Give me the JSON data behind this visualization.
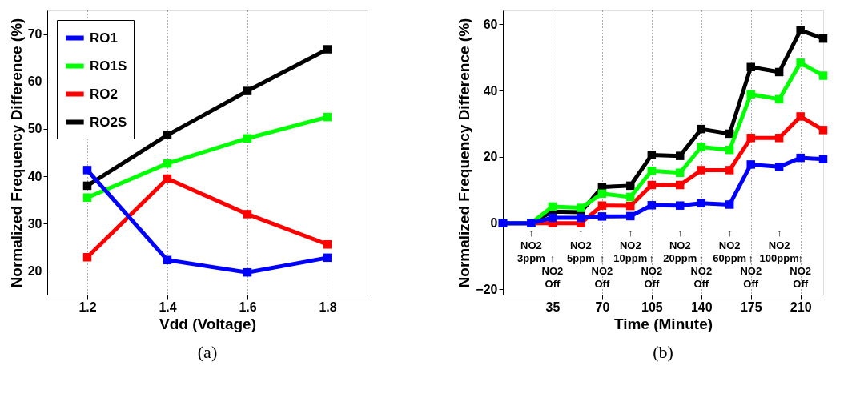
{
  "chart_data": [
    {
      "type": "line",
      "xlabel": "Vdd (Voltage)",
      "ylabel": "Normalized Frequency Difference (%)",
      "x": [
        1.2,
        1.4,
        1.6,
        1.8
      ],
      "xlim": [
        1.1,
        1.9
      ],
      "xticks": [
        1.2,
        1.4,
        1.6,
        1.8
      ],
      "ylim": [
        15,
        75
      ],
      "yticks": [
        20,
        30,
        40,
        50,
        60,
        70
      ],
      "grid": "x",
      "legend": "top left",
      "marker": "square",
      "line_style": "solid",
      "series": [
        {
          "name": "RO1",
          "color": "#0000ff",
          "values": [
            41.3,
            22.3,
            19.7,
            22.8
          ]
        },
        {
          "name": "RO1S",
          "color": "#00ff00",
          "values": [
            35.5,
            42.7,
            48.0,
            52.5
          ]
        },
        {
          "name": "RO2",
          "color": "#ff0000",
          "values": [
            22.9,
            39.5,
            32.0,
            25.6
          ]
        },
        {
          "name": "RO2S",
          "color": "#000000",
          "values": [
            38.0,
            48.7,
            58.0,
            66.8
          ]
        }
      ],
      "annotations": [
        "(a)"
      ]
    },
    {
      "type": "line",
      "xlabel": "Time (Minute)",
      "ylabel": "Normalized Frequency Difference (%)",
      "x": [
        0,
        20,
        35,
        55,
        70,
        90,
        105,
        125,
        140,
        160,
        175,
        195,
        210,
        226
      ],
      "xlim": [
        0,
        226
      ],
      "xticks": [
        35,
        70,
        105,
        140,
        175,
        210
      ],
      "ylim": [
        -21.6,
        64.2
      ],
      "yticks": [
        -20,
        0,
        20,
        40,
        60
      ],
      "grid": "x",
      "legend": "top left",
      "marker": "square",
      "line_style": "solid",
      "series": [
        {
          "name": "RO1",
          "color": "#0000ff",
          "values": [
            0,
            0,
            1.6,
            1.6,
            2.0,
            2.1,
            5.4,
            5.3,
            6.0,
            5.6,
            17.7,
            17.0,
            19.7,
            19.3
          ]
        },
        {
          "name": "RO1S",
          "color": "#00ff00",
          "values": [
            0,
            0,
            5.0,
            4.6,
            8.9,
            7.9,
            15.8,
            15.2,
            23.0,
            22.1,
            38.9,
            37.4,
            48.4,
            44.5
          ]
        },
        {
          "name": "RO2",
          "color": "#ff0000",
          "values": [
            0,
            0,
            0,
            0,
            5.3,
            5.2,
            11.5,
            11.5,
            16.0,
            16.0,
            25.7,
            25.7,
            32.2,
            28.1
          ]
        },
        {
          "name": "RO2S",
          "color": "#000000",
          "values": [
            0,
            0,
            3.5,
            3.3,
            10.9,
            11.3,
            20.6,
            20.3,
            28.4,
            27.0,
            47.1,
            45.6,
            58.2,
            55.7
          ]
        }
      ],
      "annotations": [
        "↑\nNO2\n3ppm",
        "↑\nNO2\nOff",
        "↑\nNO2\n5ppm",
        "↑\nNO2\nOff",
        "↑\nNO2\n10ppm",
        "↑\nNO2\nOff",
        "↑\nNO2\n20ppm",
        "↑\nNO2\nOff",
        "↑\nNO2\n60ppm",
        "↑\nNO2\nOff",
        "↑\nNO2\n100ppm",
        "↑\nNO2\nOff",
        "(b)"
      ]
    }
  ]
}
